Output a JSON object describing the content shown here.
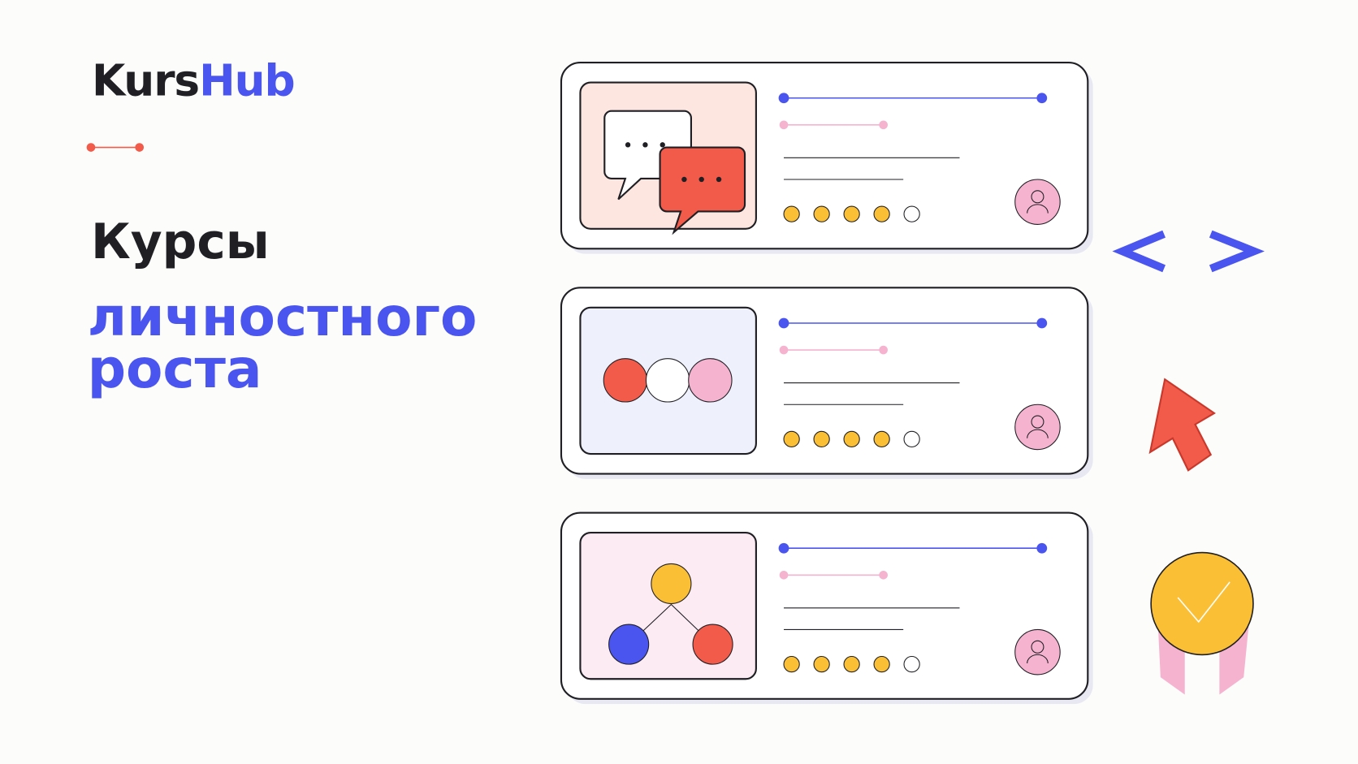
{
  "header": {
    "brand_part1": "Kurs",
    "brand_part2": "Hub"
  },
  "headline": {
    "line1": "Курсы",
    "line2": "личностного",
    "line3": "роста"
  },
  "cards": [
    {
      "rating": 4,
      "rating_max": 5
    },
    {
      "rating": 4,
      "rating_max": 5
    },
    {
      "rating": 4,
      "rating_max": 5
    }
  ]
}
